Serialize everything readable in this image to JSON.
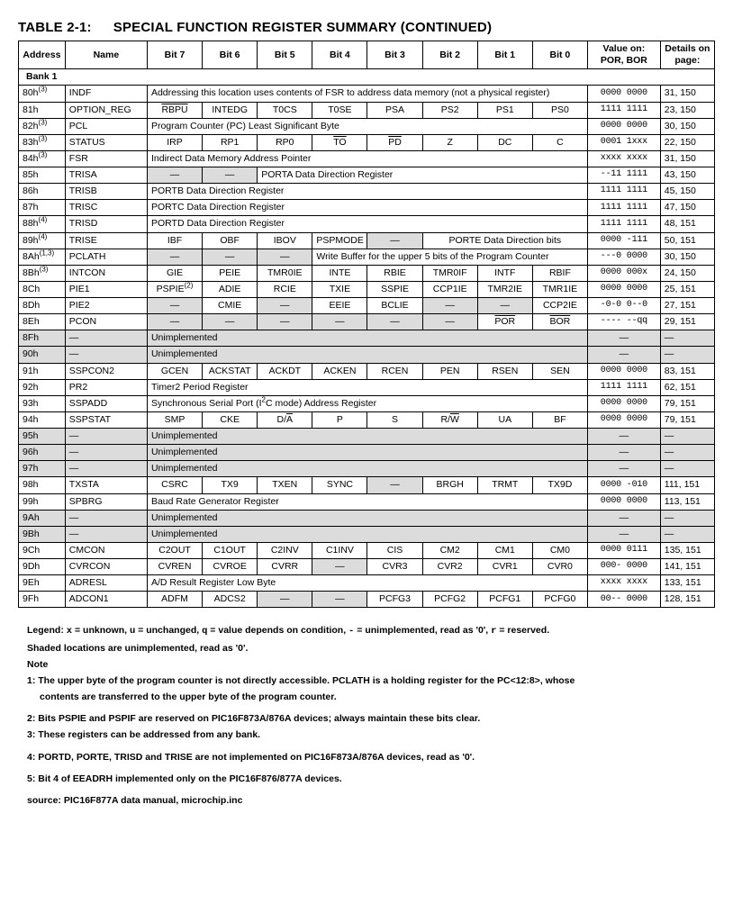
{
  "title_prefix": "TABLE 2-1:",
  "title_main": "SPECIAL FUNCTION REGISTER SUMMARY (CONTINUED)",
  "headers": {
    "address": "Address",
    "name": "Name",
    "bit7": "Bit 7",
    "bit6": "Bit 6",
    "bit5": "Bit 5",
    "bit4": "Bit 4",
    "bit3": "Bit 3",
    "bit2": "Bit 2",
    "bit1": "Bit 1",
    "bit0": "Bit 0",
    "value_on": "Value on: POR, BOR",
    "details": "Details on page:"
  },
  "bank_label": "Bank 1",
  "rows": [
    {
      "addr": "80h",
      "sup": "(3)",
      "name": "INDF",
      "span_text": "Addressing this location uses contents of FSR to address data memory (not a physical register)",
      "value": "0000 0000",
      "page": "31, 150"
    },
    {
      "addr": "81h",
      "name": "OPTION_REG",
      "bits": [
        {
          "t": "RBPU",
          "ov": true
        },
        {
          "t": "INTEDG"
        },
        {
          "t": "T0CS"
        },
        {
          "t": "T0SE"
        },
        {
          "t": "PSA"
        },
        {
          "t": "PS2"
        },
        {
          "t": "PS1"
        },
        {
          "t": "PS0"
        }
      ],
      "value": "1111 1111",
      "page": "23, 150"
    },
    {
      "addr": "82h",
      "sup": "(3)",
      "name": "PCL",
      "span_text": "Program Counter (PC) Least Significant Byte",
      "value": "0000 0000",
      "page": "30, 150"
    },
    {
      "addr": "83h",
      "sup": "(3)",
      "name": "STATUS",
      "bits": [
        {
          "t": "IRP"
        },
        {
          "t": "RP1"
        },
        {
          "t": "RP0"
        },
        {
          "t": "TO",
          "ov": true
        },
        {
          "t": "PD",
          "ov": true
        },
        {
          "t": "Z"
        },
        {
          "t": "DC"
        },
        {
          "t": "C"
        }
      ],
      "value": "0001 1xxx",
      "page": "22, 150"
    },
    {
      "addr": "84h",
      "sup": "(3)",
      "name": "FSR",
      "span_text": "Indirect Data Memory Address Pointer",
      "value": "xxxx xxxx",
      "page": "31, 150"
    },
    {
      "addr": "85h",
      "name": "TRISA",
      "bits_custom": "trisa",
      "value": "--11 1111",
      "page": "43, 150"
    },
    {
      "addr": "86h",
      "name": "TRISB",
      "span_text": "PORTB Data Direction Register",
      "value": "1111 1111",
      "page": "45, 150"
    },
    {
      "addr": "87h",
      "name": "TRISC",
      "span_text": "PORTC Data Direction Register",
      "value": "1111 1111",
      "page": "47, 150"
    },
    {
      "addr": "88h",
      "sup": "(4)",
      "name": "TRISD",
      "span_text": "PORTD Data Direction Register",
      "value": "1111 1111",
      "page": "48, 151"
    },
    {
      "addr": "89h",
      "sup": "(4)",
      "name": "TRISE",
      "bits_custom": "trise",
      "value": "0000 -111",
      "page": "50, 151"
    },
    {
      "addr": "8Ah",
      "sup": "(1,3)",
      "name": "PCLATH",
      "bits_custom": "pclath",
      "value": "---0 0000",
      "page": "30, 150"
    },
    {
      "addr": "8Bh",
      "sup": "(3)",
      "name": "INTCON",
      "bits": [
        {
          "t": "GIE"
        },
        {
          "t": "PEIE"
        },
        {
          "t": "TMR0IE"
        },
        {
          "t": "INTE"
        },
        {
          "t": "RBIE"
        },
        {
          "t": "TMR0IF"
        },
        {
          "t": "INTF"
        },
        {
          "t": "RBIF"
        }
      ],
      "value": "0000 000x",
      "page": "24, 150"
    },
    {
      "addr": "8Ch",
      "name": "PIE1",
      "bits": [
        {
          "t": "PSPIE",
          "sup": "(2)"
        },
        {
          "t": "ADIE"
        },
        {
          "t": "RCIE"
        },
        {
          "t": "TXIE"
        },
        {
          "t": "SSPIE"
        },
        {
          "t": "CCP1IE"
        },
        {
          "t": "TMR2IE"
        },
        {
          "t": "TMR1IE"
        }
      ],
      "value": "0000 0000",
      "page": "25, 151"
    },
    {
      "addr": "8Dh",
      "name": "PIE2",
      "bits": [
        {
          "t": "—",
          "sh": true
        },
        {
          "t": "CMIE"
        },
        {
          "t": "—",
          "sh": true
        },
        {
          "t": "EEIE"
        },
        {
          "t": "BCLIE"
        },
        {
          "t": "—",
          "sh": true
        },
        {
          "t": "—",
          "sh": true
        },
        {
          "t": "CCP2IE"
        }
      ],
      "value": "-0-0 0--0",
      "page": "27, 151"
    },
    {
      "addr": "8Eh",
      "name": "PCON",
      "bits": [
        {
          "t": "—",
          "sh": true
        },
        {
          "t": "—",
          "sh": true
        },
        {
          "t": "—",
          "sh": true
        },
        {
          "t": "—",
          "sh": true
        },
        {
          "t": "—",
          "sh": true
        },
        {
          "t": "—",
          "sh": true
        },
        {
          "t": "POR",
          "ov": true
        },
        {
          "t": "BOR",
          "ov": true
        }
      ],
      "value": "---- --qq",
      "page": "29, 151"
    },
    {
      "addr": "8Fh",
      "name": "—",
      "row_shaded": true,
      "span_text": "Unimplemented",
      "value": "—",
      "page": "—"
    },
    {
      "addr": "90h",
      "name": "—",
      "row_shaded": true,
      "span_text": "Unimplemented",
      "value": "—",
      "page": "—"
    },
    {
      "addr": "91h",
      "name": "SSPCON2",
      "bits": [
        {
          "t": "GCEN"
        },
        {
          "t": "ACKSTAT"
        },
        {
          "t": "ACKDT"
        },
        {
          "t": "ACKEN"
        },
        {
          "t": "RCEN"
        },
        {
          "t": "PEN"
        },
        {
          "t": "RSEN"
        },
        {
          "t": "SEN"
        }
      ],
      "value": "0000 0000",
      "page": "83, 151"
    },
    {
      "addr": "92h",
      "name": "PR2",
      "span_text": "Timer2 Period Register",
      "value": "1111 1111",
      "page": "62, 151"
    },
    {
      "addr": "93h",
      "name": "SSPADD",
      "span_text_html": "Synchronous Serial Port (I<sup>2</sup>C mode) Address Register",
      "value": "0000 0000",
      "page": "79, 151"
    },
    {
      "addr": "94h",
      "name": "SSPSTAT",
      "bits": [
        {
          "t": "SMP"
        },
        {
          "t": "CKE"
        },
        {
          "t": "D/A",
          "ov_last": true
        },
        {
          "t": "P"
        },
        {
          "t": "S"
        },
        {
          "t": "R/W",
          "ov_last": true
        },
        {
          "t": "UA"
        },
        {
          "t": "BF"
        }
      ],
      "value": "0000 0000",
      "page": "79, 151"
    },
    {
      "addr": "95h",
      "name": "—",
      "row_shaded": true,
      "span_text": "Unimplemented",
      "value": "—",
      "page": "—"
    },
    {
      "addr": "96h",
      "name": "—",
      "row_shaded": true,
      "span_text": "Unimplemented",
      "value": "—",
      "page": "—"
    },
    {
      "addr": "97h",
      "name": "—",
      "row_shaded": true,
      "span_text": "Unimplemented",
      "value": "—",
      "page": "—"
    },
    {
      "addr": "98h",
      "name": "TXSTA",
      "bits": [
        {
          "t": "CSRC"
        },
        {
          "t": "TX9"
        },
        {
          "t": "TXEN"
        },
        {
          "t": "SYNC"
        },
        {
          "t": "—",
          "sh": true
        },
        {
          "t": "BRGH"
        },
        {
          "t": "TRMT"
        },
        {
          "t": "TX9D"
        }
      ],
      "value": "0000 -010",
      "page": "111, 151"
    },
    {
      "addr": "99h",
      "name": "SPBRG",
      "span_text": "Baud Rate Generator Register",
      "value": "0000 0000",
      "page": "113, 151"
    },
    {
      "addr": "9Ah",
      "name": "—",
      "row_shaded": true,
      "span_text": "Unimplemented",
      "value": "—",
      "page": "—"
    },
    {
      "addr": "9Bh",
      "name": "—",
      "row_shaded": true,
      "span_text": "Unimplemented",
      "value": "—",
      "page": "—"
    },
    {
      "addr": "9Ch",
      "name": "CMCON",
      "bits": [
        {
          "t": "C2OUT"
        },
        {
          "t": "C1OUT"
        },
        {
          "t": "C2INV"
        },
        {
          "t": "C1INV"
        },
        {
          "t": "CIS"
        },
        {
          "t": "CM2"
        },
        {
          "t": "CM1"
        },
        {
          "t": "CM0"
        }
      ],
      "value": "0000 0111",
      "page": "135, 151"
    },
    {
      "addr": "9Dh",
      "name": "CVRCON",
      "bits": [
        {
          "t": "CVREN"
        },
        {
          "t": "CVROE"
        },
        {
          "t": "CVRR"
        },
        {
          "t": "—",
          "sh": true
        },
        {
          "t": "CVR3"
        },
        {
          "t": "CVR2"
        },
        {
          "t": "CVR1"
        },
        {
          "t": "CVR0"
        }
      ],
      "value": "000- 0000",
      "page": "141, 151"
    },
    {
      "addr": "9Eh",
      "name": "ADRESL",
      "span_text": "A/D Result Register Low Byte",
      "value": "xxxx xxxx",
      "page": "133, 151"
    },
    {
      "addr": "9Fh",
      "name": "ADCON1",
      "bits": [
        {
          "t": "ADFM"
        },
        {
          "t": "ADCS2"
        },
        {
          "t": "—",
          "sh": true
        },
        {
          "t": "—",
          "sh": true
        },
        {
          "t": "PCFG3"
        },
        {
          "t": "PCFG2"
        },
        {
          "t": "PCFG1"
        },
        {
          "t": "PCFG0"
        }
      ],
      "value": "00-- 0000",
      "page": "128, 151"
    }
  ],
  "trisa": {
    "porta_text": "PORTA Data Direction Register"
  },
  "trise": {
    "b7": "IBF",
    "b6": "OBF",
    "b5": "IBOV",
    "b4": "PSPMODE",
    "porte_text": "PORTE Data Direction bits"
  },
  "pclath": {
    "text": "Write Buffer for the upper 5 bits of the Program Counter"
  },
  "legend": {
    "l1_a": "Legend: ",
    "l1_b": " = unknown, ",
    "l1_c": " = unchanged, ",
    "l1_d": " = value depends on condition, ",
    "l1_e": " = unimplemented, read as '0', ",
    "l1_f": " = reserved.",
    "l2": "Shaded locations are unimplemented, read as '0'.",
    "note": "Note",
    "n1a": "1: The upper byte of the program counter is not directly accessible. PCLATH is a holding register for the PC<12:8>, whose",
    "n1b": "contents are transferred to the upper byte of the program counter.",
    "n2": "2: Bits PSPIE and PSPIF are reserved on PIC16F873A/876A devices; always maintain these bits clear.",
    "n3": "3: These registers can be addressed from any bank.",
    "n4": "4: PORTD, PORTE, TRISD and TRISE are not implemented on PIC16F873A/876A devices, read as '0'.",
    "n5": "5: Bit 4 of EEADRH implemented only on the PIC16F876/877A devices.",
    "src": "source: PIC16F877A data manual, microchip.inc"
  }
}
